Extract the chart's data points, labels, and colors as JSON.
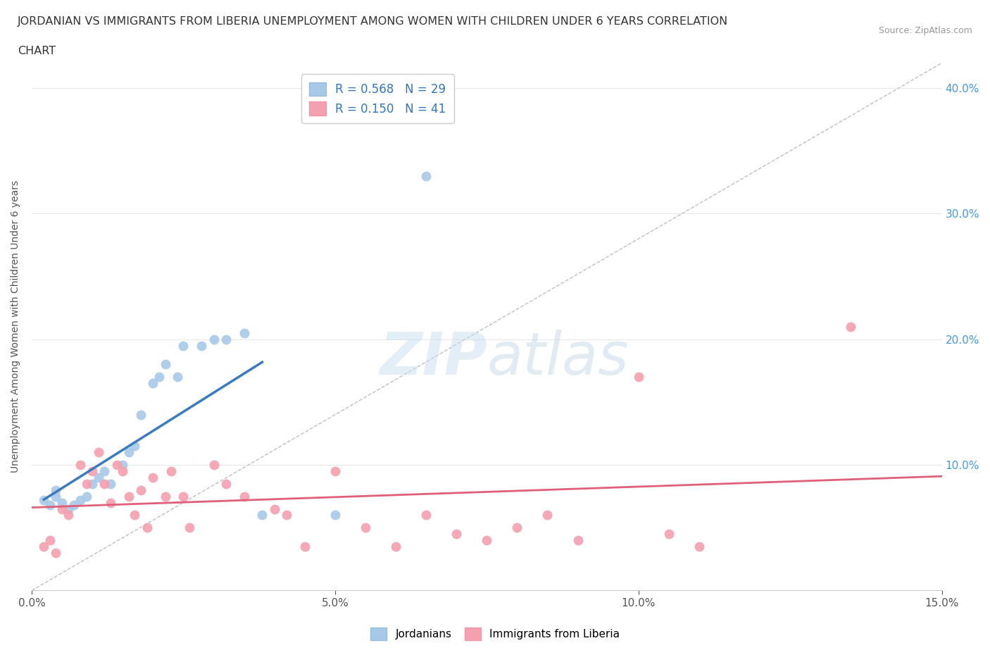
{
  "title_line1": "JORDANIAN VS IMMIGRANTS FROM LIBERIA UNEMPLOYMENT AMONG WOMEN WITH CHILDREN UNDER 6 YEARS CORRELATION",
  "title_line2": "CHART",
  "source": "Source: ZipAtlas.com",
  "ylabel": "Unemployment Among Women with Children Under 6 years",
  "xlim": [
    0.0,
    0.15
  ],
  "ylim": [
    0.0,
    0.42
  ],
  "xtick_vals": [
    0.0,
    0.05,
    0.1,
    0.15
  ],
  "xtick_labels": [
    "0.0%",
    "5.0%",
    "10.0%",
    "15.0%"
  ],
  "ytick_vals": [
    0.0,
    0.1,
    0.2,
    0.3,
    0.4
  ],
  "ytick_labels_right": [
    "",
    "10.0%",
    "20.0%",
    "30.0%",
    "40.0%"
  ],
  "jordanian_color": "#a8c8e8",
  "liberia_color": "#f4a0b0",
  "jordanian_line_color": "#3a7bbf",
  "liberia_line_color": "#e0607a",
  "jordanian_R": 0.568,
  "jordanian_N": 29,
  "liberia_R": 0.15,
  "liberia_N": 41,
  "jordanian_scatter_x": [
    0.002,
    0.003,
    0.004,
    0.004,
    0.005,
    0.006,
    0.007,
    0.008,
    0.009,
    0.01,
    0.011,
    0.012,
    0.013,
    0.015,
    0.016,
    0.017,
    0.018,
    0.02,
    0.021,
    0.022,
    0.024,
    0.025,
    0.028,
    0.03,
    0.032,
    0.035,
    0.038,
    0.05,
    0.065
  ],
  "jordanian_scatter_y": [
    0.072,
    0.068,
    0.075,
    0.08,
    0.07,
    0.065,
    0.068,
    0.072,
    0.075,
    0.085,
    0.09,
    0.095,
    0.085,
    0.1,
    0.11,
    0.115,
    0.14,
    0.165,
    0.17,
    0.18,
    0.17,
    0.195,
    0.195,
    0.2,
    0.2,
    0.205,
    0.06,
    0.06,
    0.33
  ],
  "liberia_scatter_x": [
    0.002,
    0.003,
    0.004,
    0.005,
    0.006,
    0.008,
    0.009,
    0.01,
    0.011,
    0.012,
    0.013,
    0.014,
    0.015,
    0.016,
    0.017,
    0.018,
    0.019,
    0.02,
    0.022,
    0.023,
    0.025,
    0.026,
    0.03,
    0.032,
    0.035,
    0.04,
    0.042,
    0.045,
    0.05,
    0.055,
    0.06,
    0.065,
    0.07,
    0.075,
    0.08,
    0.085,
    0.09,
    0.1,
    0.105,
    0.11,
    0.135
  ],
  "liberia_scatter_y": [
    0.035,
    0.04,
    0.03,
    0.065,
    0.06,
    0.1,
    0.085,
    0.095,
    0.11,
    0.085,
    0.07,
    0.1,
    0.095,
    0.075,
    0.06,
    0.08,
    0.05,
    0.09,
    0.075,
    0.095,
    0.075,
    0.05,
    0.1,
    0.085,
    0.075,
    0.065,
    0.06,
    0.035,
    0.095,
    0.05,
    0.035,
    0.06,
    0.045,
    0.04,
    0.05,
    0.06,
    0.04,
    0.17,
    0.045,
    0.035,
    0.21
  ],
  "background_color": "#ffffff",
  "grid_color": "#e8e8e8"
}
